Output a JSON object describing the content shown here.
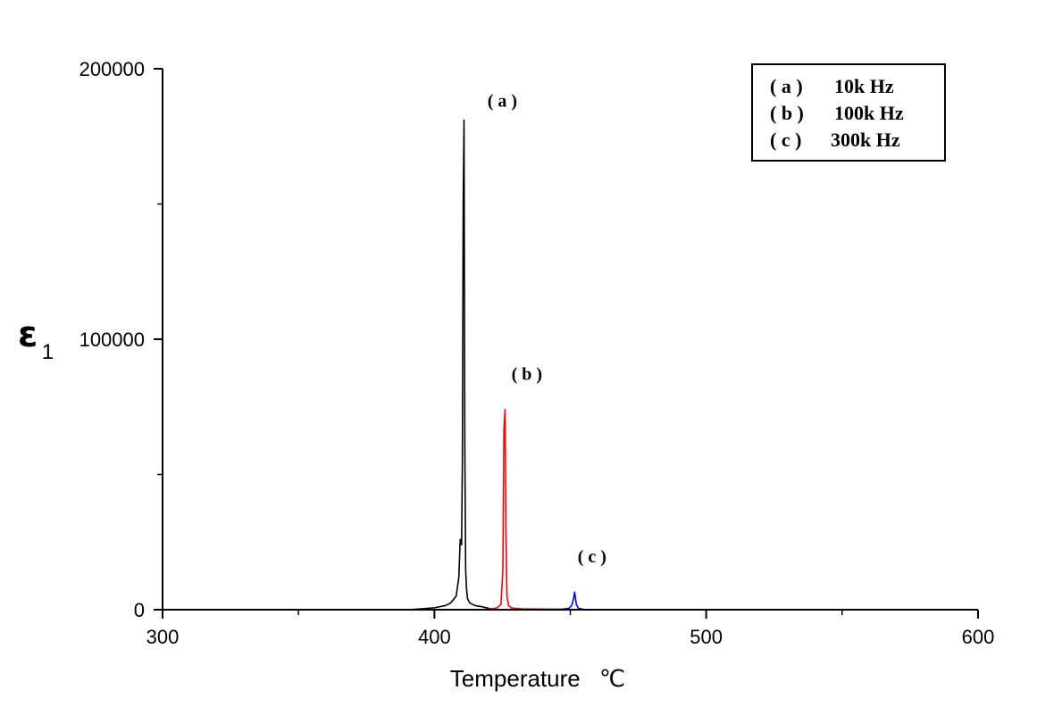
{
  "chart_data": {
    "type": "line",
    "title": "",
    "xlabel": "Temperature",
    "xunit": "℃",
    "ylabel": "ε",
    "ylabel_subscript": "1",
    "xlim": [
      300,
      600
    ],
    "ylim": [
      0,
      200000
    ],
    "x_ticks": [
      "300",
      "400",
      "500",
      "600"
    ],
    "y_ticks": [
      "0",
      "100000",
      "200000"
    ],
    "grid": false,
    "legend_position": "top-right",
    "legend": [
      {
        "tag": "( a )",
        "text": "10k Hz"
      },
      {
        "tag": "( b )",
        "text": "100k Hz"
      },
      {
        "tag": "( c )",
        "text": "300k Hz"
      }
    ],
    "series": [
      {
        "name": "( a )   10k Hz",
        "label": "( a )",
        "color": "#000000",
        "x": [
          300,
          390,
          395,
          400,
          404,
          406,
          408,
          409,
          409.5,
          410,
          410.3,
          410.6,
          410.9,
          411.2,
          411.5,
          411.8,
          412.2,
          413,
          415,
          418,
          420,
          422
        ],
        "y": [
          0,
          0,
          300,
          700,
          1500,
          2500,
          5000,
          12000,
          26000,
          24000,
          55000,
          150000,
          181000,
          60000,
          15000,
          8000,
          4000,
          2500,
          1500,
          1000,
          500,
          0
        ]
      },
      {
        "name": "( b )   100k Hz",
        "label": "( b )",
        "color": "#ff0000",
        "x": [
          300,
          415,
          420,
          423,
          424.5,
          425.2,
          425.6,
          426,
          426.3,
          426.7,
          427.3,
          428.5,
          432,
          450,
          460
        ],
        "y": [
          0,
          0,
          200,
          600,
          2000,
          15000,
          67000,
          74000,
          30000,
          5000,
          1500,
          600,
          300,
          100,
          0
        ]
      },
      {
        "name": "( c )   300k Hz",
        "label": "( c )",
        "color": "#0000ff",
        "x": [
          300,
          440,
          447,
          449.5,
          450.5,
          451.2,
          451.6,
          452.2,
          453,
          455,
          460,
          500
        ],
        "y": [
          0,
          0,
          200,
          500,
          1500,
          4000,
          6500,
          2000,
          500,
          100,
          0,
          0
        ]
      }
    ],
    "annotations": [
      {
        "text": "( a )",
        "x": 425,
        "y": 186000,
        "color": "#000000"
      },
      {
        "text": "( b )",
        "x": 434,
        "y": 85000,
        "color": "#000000"
      },
      {
        "text": "( c )",
        "x": 458,
        "y": 17500,
        "color": "#000000"
      }
    ]
  }
}
